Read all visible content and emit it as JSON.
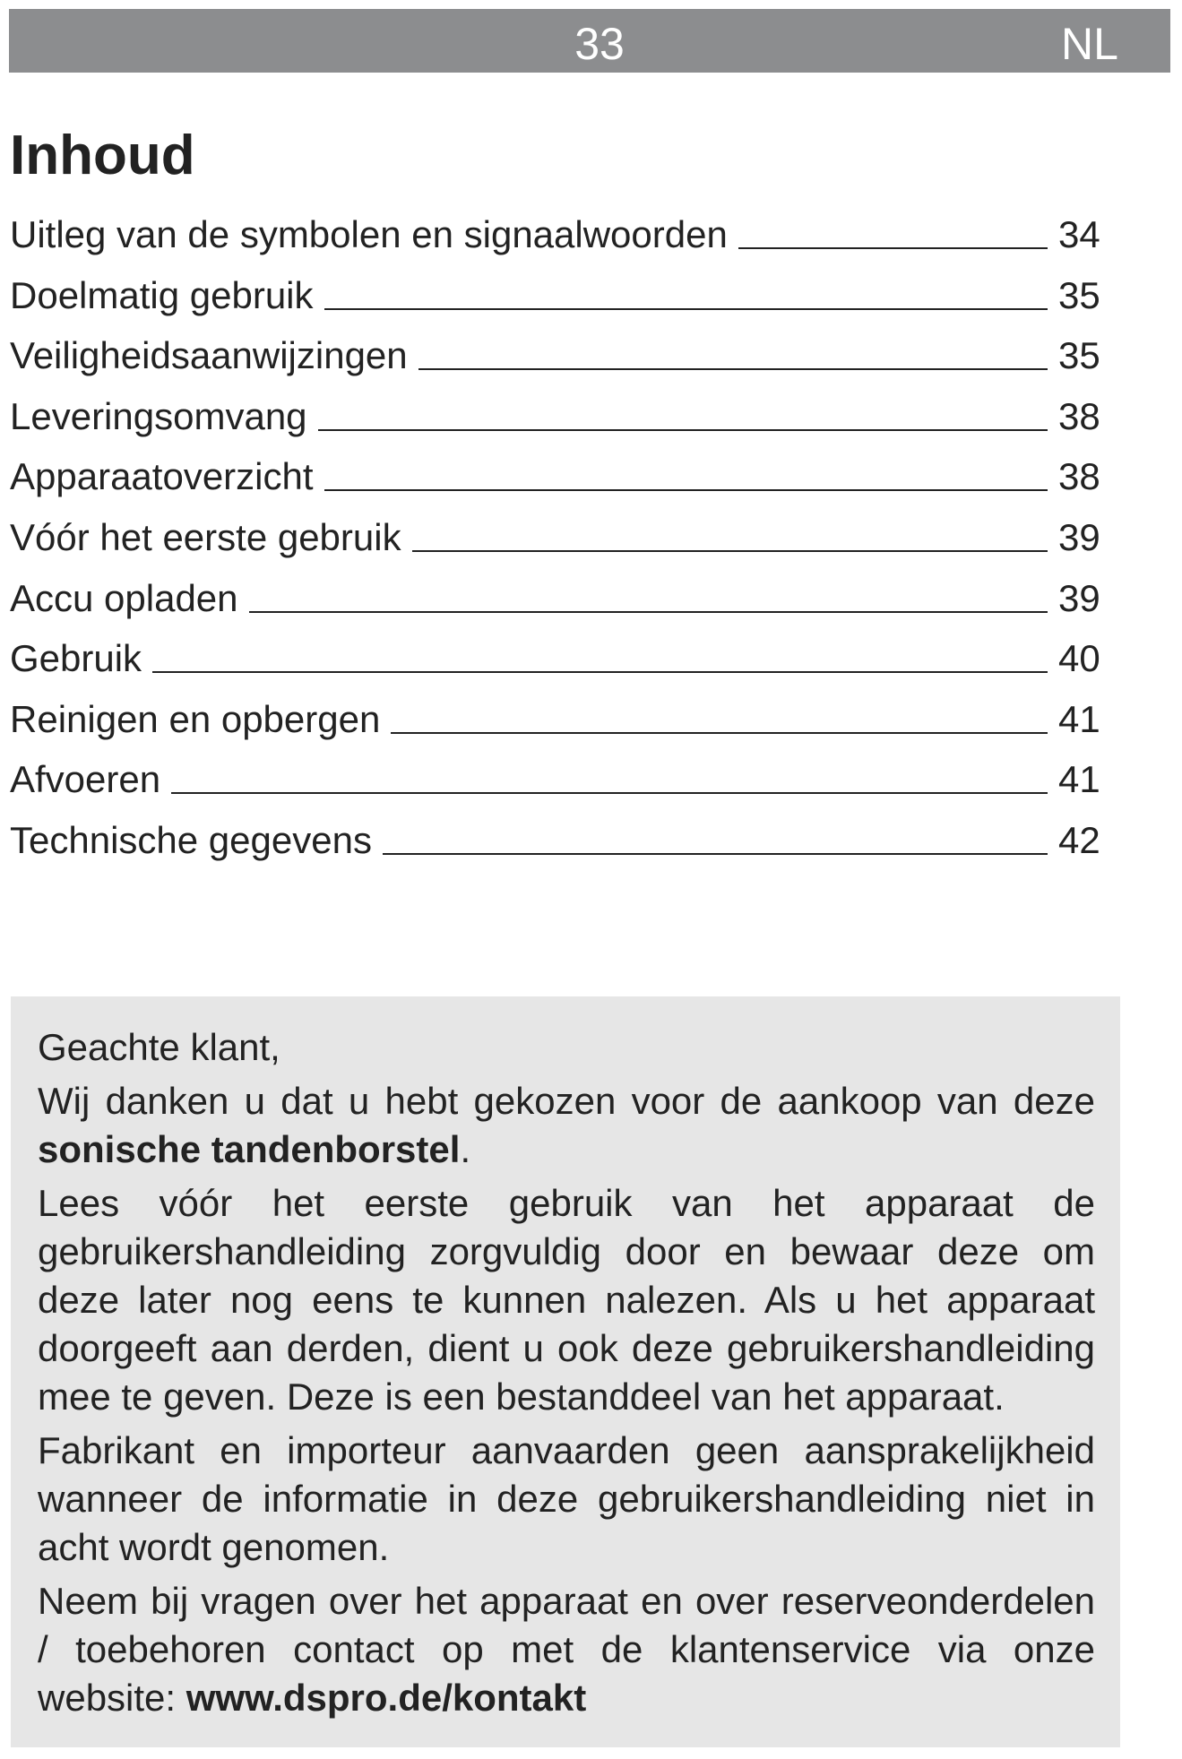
{
  "header": {
    "page_number": "33",
    "language": "NL"
  },
  "title": "Inhoud",
  "toc": [
    {
      "title": "Uitleg van de symbolen en signaalwoorden",
      "page": "34"
    },
    {
      "title": "Doelmatig gebruik",
      "page": "35"
    },
    {
      "title": "Veiligheidsaanwijzingen",
      "page": "35"
    },
    {
      "title": "Leveringsomvang",
      "page": "38"
    },
    {
      "title": "Apparaatoverzicht",
      "page": "38"
    },
    {
      "title": "Vóór het eerste gebruik",
      "page": "39"
    },
    {
      "title": "Accu opladen",
      "page": "39"
    },
    {
      "title": "Gebruik",
      "page": "40"
    },
    {
      "title": "Reinigen en opbergen",
      "page": "41"
    },
    {
      "title": "Afvoeren",
      "page": "41"
    },
    {
      "title": "Technische gegevens",
      "page": "42"
    }
  ],
  "notice": {
    "greeting": "Geachte klant,",
    "paragraphs": [
      [
        {
          "text": "Wij danken u dat u hebt gekozen voor de aankoop van deze "
        },
        {
          "text": "sonische tandenborstel",
          "bold": true
        },
        {
          "text": "."
        }
      ],
      [
        {
          "text": "Lees vóór het eerste gebruik van het apparaat de gebruikershandleiding zorgvuldig door en bewaar deze om deze later nog eens te kunnen nalezen. Als u het apparaat doorgeeft aan derden, dient u ook deze gebruikershandleiding mee te geven. Deze is een bestanddeel van het apparaat."
        }
      ],
      [
        {
          "text": "Fabrikant en importeur aanvaarden geen aansprakelijkheid wanneer de informatie in deze gebruikershandleiding niet in acht wordt genomen."
        }
      ],
      [
        {
          "text": "Neem bij vragen over het apparaat en over reserveonderdelen / toebehoren contact op met de klantenservice via onze website: "
        },
        {
          "text": "www.dspro.de/kontakt",
          "bold": true
        }
      ]
    ]
  }
}
